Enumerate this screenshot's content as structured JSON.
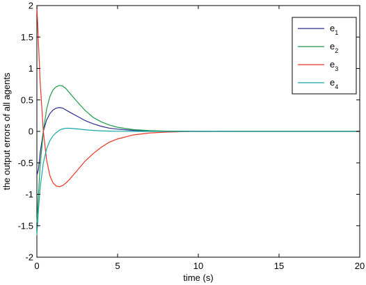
{
  "chart_data": {
    "type": "line",
    "xlabel": "time (s)",
    "ylabel": "the output errors of all agents",
    "xlim": [
      0,
      20
    ],
    "ylim": [
      -2,
      2
    ],
    "xticks": [
      0,
      5,
      10,
      15,
      20
    ],
    "yticks": [
      -2,
      -1.5,
      -1,
      -0.5,
      0,
      0.5,
      1,
      1.5,
      2
    ],
    "grid": false,
    "legend_position": "top-right",
    "series": [
      {
        "name": "e1",
        "legend_base": "e",
        "legend_sub": "1",
        "color": "#2a2a8c",
        "x": [
          0,
          0.1,
          0.2,
          0.4,
          0.6,
          0.8,
          1.0,
          1.2,
          1.4,
          1.6,
          1.8,
          2.0,
          2.5,
          3.0,
          3.5,
          4.0,
          4.5,
          5.0,
          6.0,
          7.0,
          8.0,
          9.0,
          10.0,
          12.0,
          15.0,
          20.0
        ],
        "y": [
          -0.7,
          -0.6,
          -0.35,
          0.0,
          0.18,
          0.28,
          0.34,
          0.37,
          0.38,
          0.37,
          0.34,
          0.31,
          0.24,
          0.17,
          0.12,
          0.08,
          0.05,
          0.035,
          0.015,
          0.007,
          0.003,
          0.001,
          0.0,
          0.0,
          0.0,
          0.0
        ]
      },
      {
        "name": "e2",
        "legend_base": "e",
        "legend_sub": "2",
        "color": "#1a9a4a",
        "x": [
          0,
          0.1,
          0.2,
          0.4,
          0.6,
          0.8,
          1.0,
          1.2,
          1.4,
          1.6,
          1.8,
          2.0,
          2.5,
          3.0,
          3.5,
          4.0,
          4.5,
          5.0,
          6.0,
          7.0,
          8.0,
          9.0,
          10.0,
          12.0,
          15.0,
          20.0
        ],
        "y": [
          -1.45,
          -1.0,
          -0.55,
          0.0,
          0.35,
          0.55,
          0.66,
          0.71,
          0.73,
          0.72,
          0.68,
          0.62,
          0.47,
          0.33,
          0.22,
          0.15,
          0.1,
          0.065,
          0.028,
          0.012,
          0.005,
          0.002,
          0.0,
          0.0,
          0.0,
          0.0
        ]
      },
      {
        "name": "e3",
        "legend_base": "e",
        "legend_sub": "3",
        "color": "#ee3322",
        "x": [
          0,
          0.1,
          0.2,
          0.4,
          0.6,
          0.8,
          1.0,
          1.2,
          1.4,
          1.6,
          1.8,
          2.0,
          2.5,
          3.0,
          3.5,
          4.0,
          4.5,
          5.0,
          6.0,
          7.0,
          8.0,
          9.0,
          10.0,
          12.0,
          15.0,
          20.0
        ],
        "y": [
          2.0,
          1.4,
          0.8,
          0.0,
          -0.45,
          -0.7,
          -0.82,
          -0.87,
          -0.88,
          -0.86,
          -0.82,
          -0.77,
          -0.62,
          -0.47,
          -0.35,
          -0.25,
          -0.17,
          -0.12,
          -0.055,
          -0.025,
          -0.011,
          -0.005,
          -0.002,
          0.0,
          0.0,
          0.0
        ]
      },
      {
        "name": "e4",
        "legend_base": "e",
        "legend_sub": "4",
        "color": "#14a8a8",
        "x": [
          0,
          0.1,
          0.2,
          0.4,
          0.6,
          0.8,
          1.0,
          1.2,
          1.4,
          1.6,
          1.8,
          2.0,
          2.5,
          3.0,
          3.5,
          4.0,
          4.5,
          5.0,
          6.0,
          7.0,
          8.0,
          9.0,
          10.0,
          12.0,
          15.0,
          20.0
        ],
        "y": [
          -1.65,
          -1.25,
          -0.9,
          -0.5,
          -0.28,
          -0.15,
          -0.07,
          -0.02,
          0.02,
          0.04,
          0.05,
          0.05,
          0.04,
          0.025,
          0.015,
          0.008,
          0.004,
          0.002,
          0.0,
          0.0,
          0.0,
          0.0,
          0.0,
          0.0,
          0.0,
          0.0
        ]
      }
    ]
  }
}
